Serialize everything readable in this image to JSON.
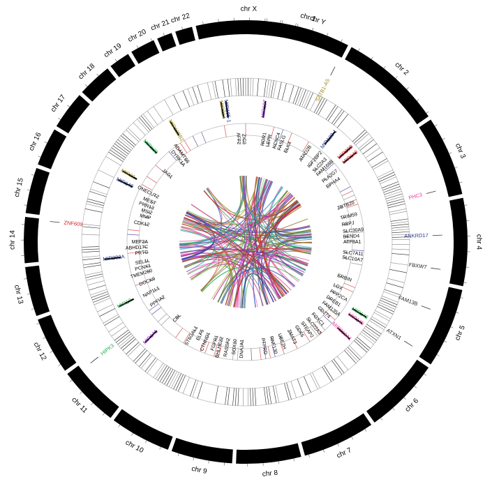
{
  "chromosomes": [
    {
      "name": "chr 1",
      "start": 3.5,
      "end": 27.5
    },
    {
      "name": "chr 2",
      "start": 28.5,
      "end": 55.5
    },
    {
      "name": "chr 3",
      "start": 56.5,
      "end": 77.5
    },
    {
      "name": "chr 4",
      "start": 78.5,
      "end": 101.5
    },
    {
      "name": "chr 5",
      "start": 102.5,
      "end": 123.5
    },
    {
      "name": "chr 6",
      "start": 124.5,
      "end": 144.5
    },
    {
      "name": "chr 7",
      "start": 145.5,
      "end": 164.5
    },
    {
      "name": "chr 8",
      "start": 165.5,
      "end": 182.5
    },
    {
      "name": "chr 9",
      "start": 183.5,
      "end": 199.5
    },
    {
      "name": "chr 10",
      "start": 200.5,
      "end": 216.5
    },
    {
      "name": "chr 11",
      "start": 217.5,
      "end": 233.5
    },
    {
      "name": "chr 12",
      "start": 234.5,
      "end": 249.5
    },
    {
      "name": "chr 13",
      "start": 250.5,
      "end": 263.5
    },
    {
      "name": "chr 14",
      "start": 264.5,
      "end": 276.5
    },
    {
      "name": "chr 15",
      "start": 277.5,
      "end": 289.5
    },
    {
      "name": "chr 16",
      "start": 290.5,
      "end": 300.5
    },
    {
      "name": "chr 17",
      "start": 301.5,
      "end": 311.5
    },
    {
      "name": "chr 18",
      "start": 312.5,
      "end": 321.5
    },
    {
      "name": "chr 19",
      "start": 322.5,
      "end": 328.0
    },
    {
      "name": "chr 20",
      "start": 329.0,
      "end": 335.5
    },
    {
      "name": "chr 21",
      "start": 336.5,
      "end": 340.5
    },
    {
      "name": "chr 22",
      "start": 341.5,
      "end": 346.0
    },
    {
      "name": "chr X",
      "start": 347.0,
      "end": 374.5
    },
    {
      "name": "chr Y",
      "start": 375.5,
      "end": 380.5
    }
  ],
  "outer_genes": [
    {
      "label": "SATB1-AS",
      "angle": 27,
      "color": "#a08c1a"
    },
    {
      "label": "PHC3",
      "angle": 75,
      "color": "#e040a0"
    },
    {
      "label": "ANKRD17",
      "angle": 88,
      "color": "#2a3a8c"
    },
    {
      "label": "FBXW7",
      "angle": 98,
      "color": "#222222"
    },
    {
      "label": "FAM13B",
      "angle": 110,
      "color": "#222222"
    },
    {
      "label": "ATXN1",
      "angle": 122,
      "color": "#222222"
    },
    {
      "label": "HIPK3",
      "angle": 232,
      "color": "#1fb04a"
    },
    {
      "label": "ZNF609",
      "angle": 276,
      "color": "#e02020"
    }
  ],
  "mirnas": [
    {
      "label": "MIR105-1",
      "angle": 352,
      "color": "#2a3a8c"
    },
    {
      "label": "MIR224",
      "angle": 350,
      "color": "#a08c1a"
    },
    {
      "label": "MIR197",
      "angle": 8,
      "color": "#9b30d0"
    },
    {
      "label": "MIR128-1",
      "angle": 39,
      "color": "#2a3a8c"
    },
    {
      "label": "MIR26B",
      "angle": 48,
      "color": "#e02020"
    },
    {
      "label": "MIR149",
      "angle": 51,
      "color": "#e02020"
    },
    {
      "label": "MIR125B2",
      "angle": 328,
      "color": "#a08c1a"
    },
    {
      "label": "MIR130",
      "angle": 315,
      "color": "#1fb04a"
    },
    {
      "label": "MIR22",
      "angle": 300,
      "color": "#a08c1a"
    },
    {
      "label": "MIR140",
      "angle": 296,
      "color": "#2a3a8c"
    },
    {
      "label": "MIR203A",
      "angle": 263,
      "color": "#2a3a8c"
    },
    {
      "label": "MIR17",
      "angle": 243,
      "color": "#1fb04a"
    },
    {
      "label": "MIR141",
      "angle": 225,
      "color": "#9b30d0"
    },
    {
      "label": "MIR143",
      "angle": 122,
      "color": "#1fb04a"
    },
    {
      "label": "MIR145",
      "angle": 125,
      "color": "#e040a0"
    },
    {
      "label": "MIR219A1",
      "angle": 133,
      "color": "#e040a0"
    }
  ],
  "inner_genes": [
    {
      "label": "AFF2",
      "angle": 356
    },
    {
      "label": "ZIC3",
      "angle": 359
    },
    {
      "label": "ROR1",
      "angle": 10
    },
    {
      "label": "LEPR",
      "angle": 13
    },
    {
      "label": "KCNC4",
      "angle": 17
    },
    {
      "label": "FASLG",
      "angle": 20
    },
    {
      "label": "ELK4",
      "angle": 24
    },
    {
      "label": "ATAD2B",
      "angle": 34
    },
    {
      "label": "IGF2BP2",
      "angle": 40
    },
    {
      "label": "SLC2A3",
      "angle": 44
    },
    {
      "label": "FAM168B",
      "angle": 47
    },
    {
      "label": "PLA2G7",
      "angle": 52
    },
    {
      "label": "EPHA4",
      "angle": 56
    },
    {
      "label": "ZBTB20",
      "angle": 70
    },
    {
      "label": "TRIM59",
      "angle": 76
    },
    {
      "label": "RBPJ",
      "angle": 80
    },
    {
      "label": "SLC30A9",
      "angle": 84
    },
    {
      "label": "BEND4",
      "angle": 87
    },
    {
      "label": "ATP8A1",
      "angle": 90
    },
    {
      "label": "SLC7A11",
      "angle": 96
    },
    {
      "label": "SLC10A7",
      "angle": 99
    },
    {
      "label": "ERBIN",
      "angle": 110
    },
    {
      "label": "LOX",
      "angle": 116
    },
    {
      "label": "PPP2CA",
      "angle": 120
    },
    {
      "label": "DREB1",
      "angle": 124
    },
    {
      "label": "FAM135A",
      "angle": 128
    },
    {
      "label": "CD274",
      "angle": 132
    },
    {
      "label": "FOXC1",
      "angle": 137
    },
    {
      "label": "SLC22A3",
      "angle": 141
    },
    {
      "label": "STEAP2",
      "angle": 145
    },
    {
      "label": "CDK6",
      "angle": 149
    },
    {
      "label": "ZMAT3",
      "angle": 154
    },
    {
      "label": "UBE2H",
      "angle": 160
    },
    {
      "label": "RNF130",
      "angle": 165
    },
    {
      "label": "PTPRD",
      "angle": 170
    },
    {
      "label": "DNAJA1",
      "angle": 182
    },
    {
      "label": "SOX10",
      "angle": 186
    },
    {
      "label": "RASSF2",
      "angle": 190
    },
    {
      "label": "BHLHE22",
      "angle": 194
    },
    {
      "label": "FGFR1",
      "angle": 197
    },
    {
      "label": "CTNND1",
      "angle": 202
    },
    {
      "label": "ELF5",
      "angle": 206
    },
    {
      "label": "ST6GAL1",
      "angle": 210
    },
    {
      "label": "CBL",
      "angle": 222
    },
    {
      "label": "PPFIA2",
      "angle": 236
    },
    {
      "label": "NAP1L1",
      "angle": 242
    },
    {
      "label": "DOCK9",
      "angle": 248
    },
    {
      "label": "TMEM260",
      "angle": 253
    },
    {
      "label": "PCNX1",
      "angle": 256
    },
    {
      "label": "SEL1L",
      "angle": 259
    },
    {
      "label": "PRTG",
      "angle": 264
    },
    {
      "label": "ABHD17C",
      "angle": 267
    },
    {
      "label": "MEF2A",
      "angle": 270
    },
    {
      "label": "CDK12",
      "angle": 280
    },
    {
      "label": "MMP",
      "angle": 284
    },
    {
      "label": "MSI2",
      "angle": 287
    },
    {
      "label": "PRR13",
      "angle": 290
    },
    {
      "label": "MEST",
      "angle": 293
    },
    {
      "label": "ONECUT2",
      "angle": 297
    },
    {
      "label": "JAG1",
      "angle": 311
    },
    {
      "label": "DYRK1A",
      "angle": 321
    },
    {
      "label": "ADAMTS5",
      "angle": 324
    }
  ],
  "link_colors": [
    "#e02020",
    "#2a3a8c",
    "#1fb04a",
    "#9b30d0",
    "#a08c1a",
    "#e040a0",
    "#20a0c0",
    "#8a6a1a",
    "#606060",
    "#c0307a",
    "#3050c0",
    "#60c060"
  ]
}
